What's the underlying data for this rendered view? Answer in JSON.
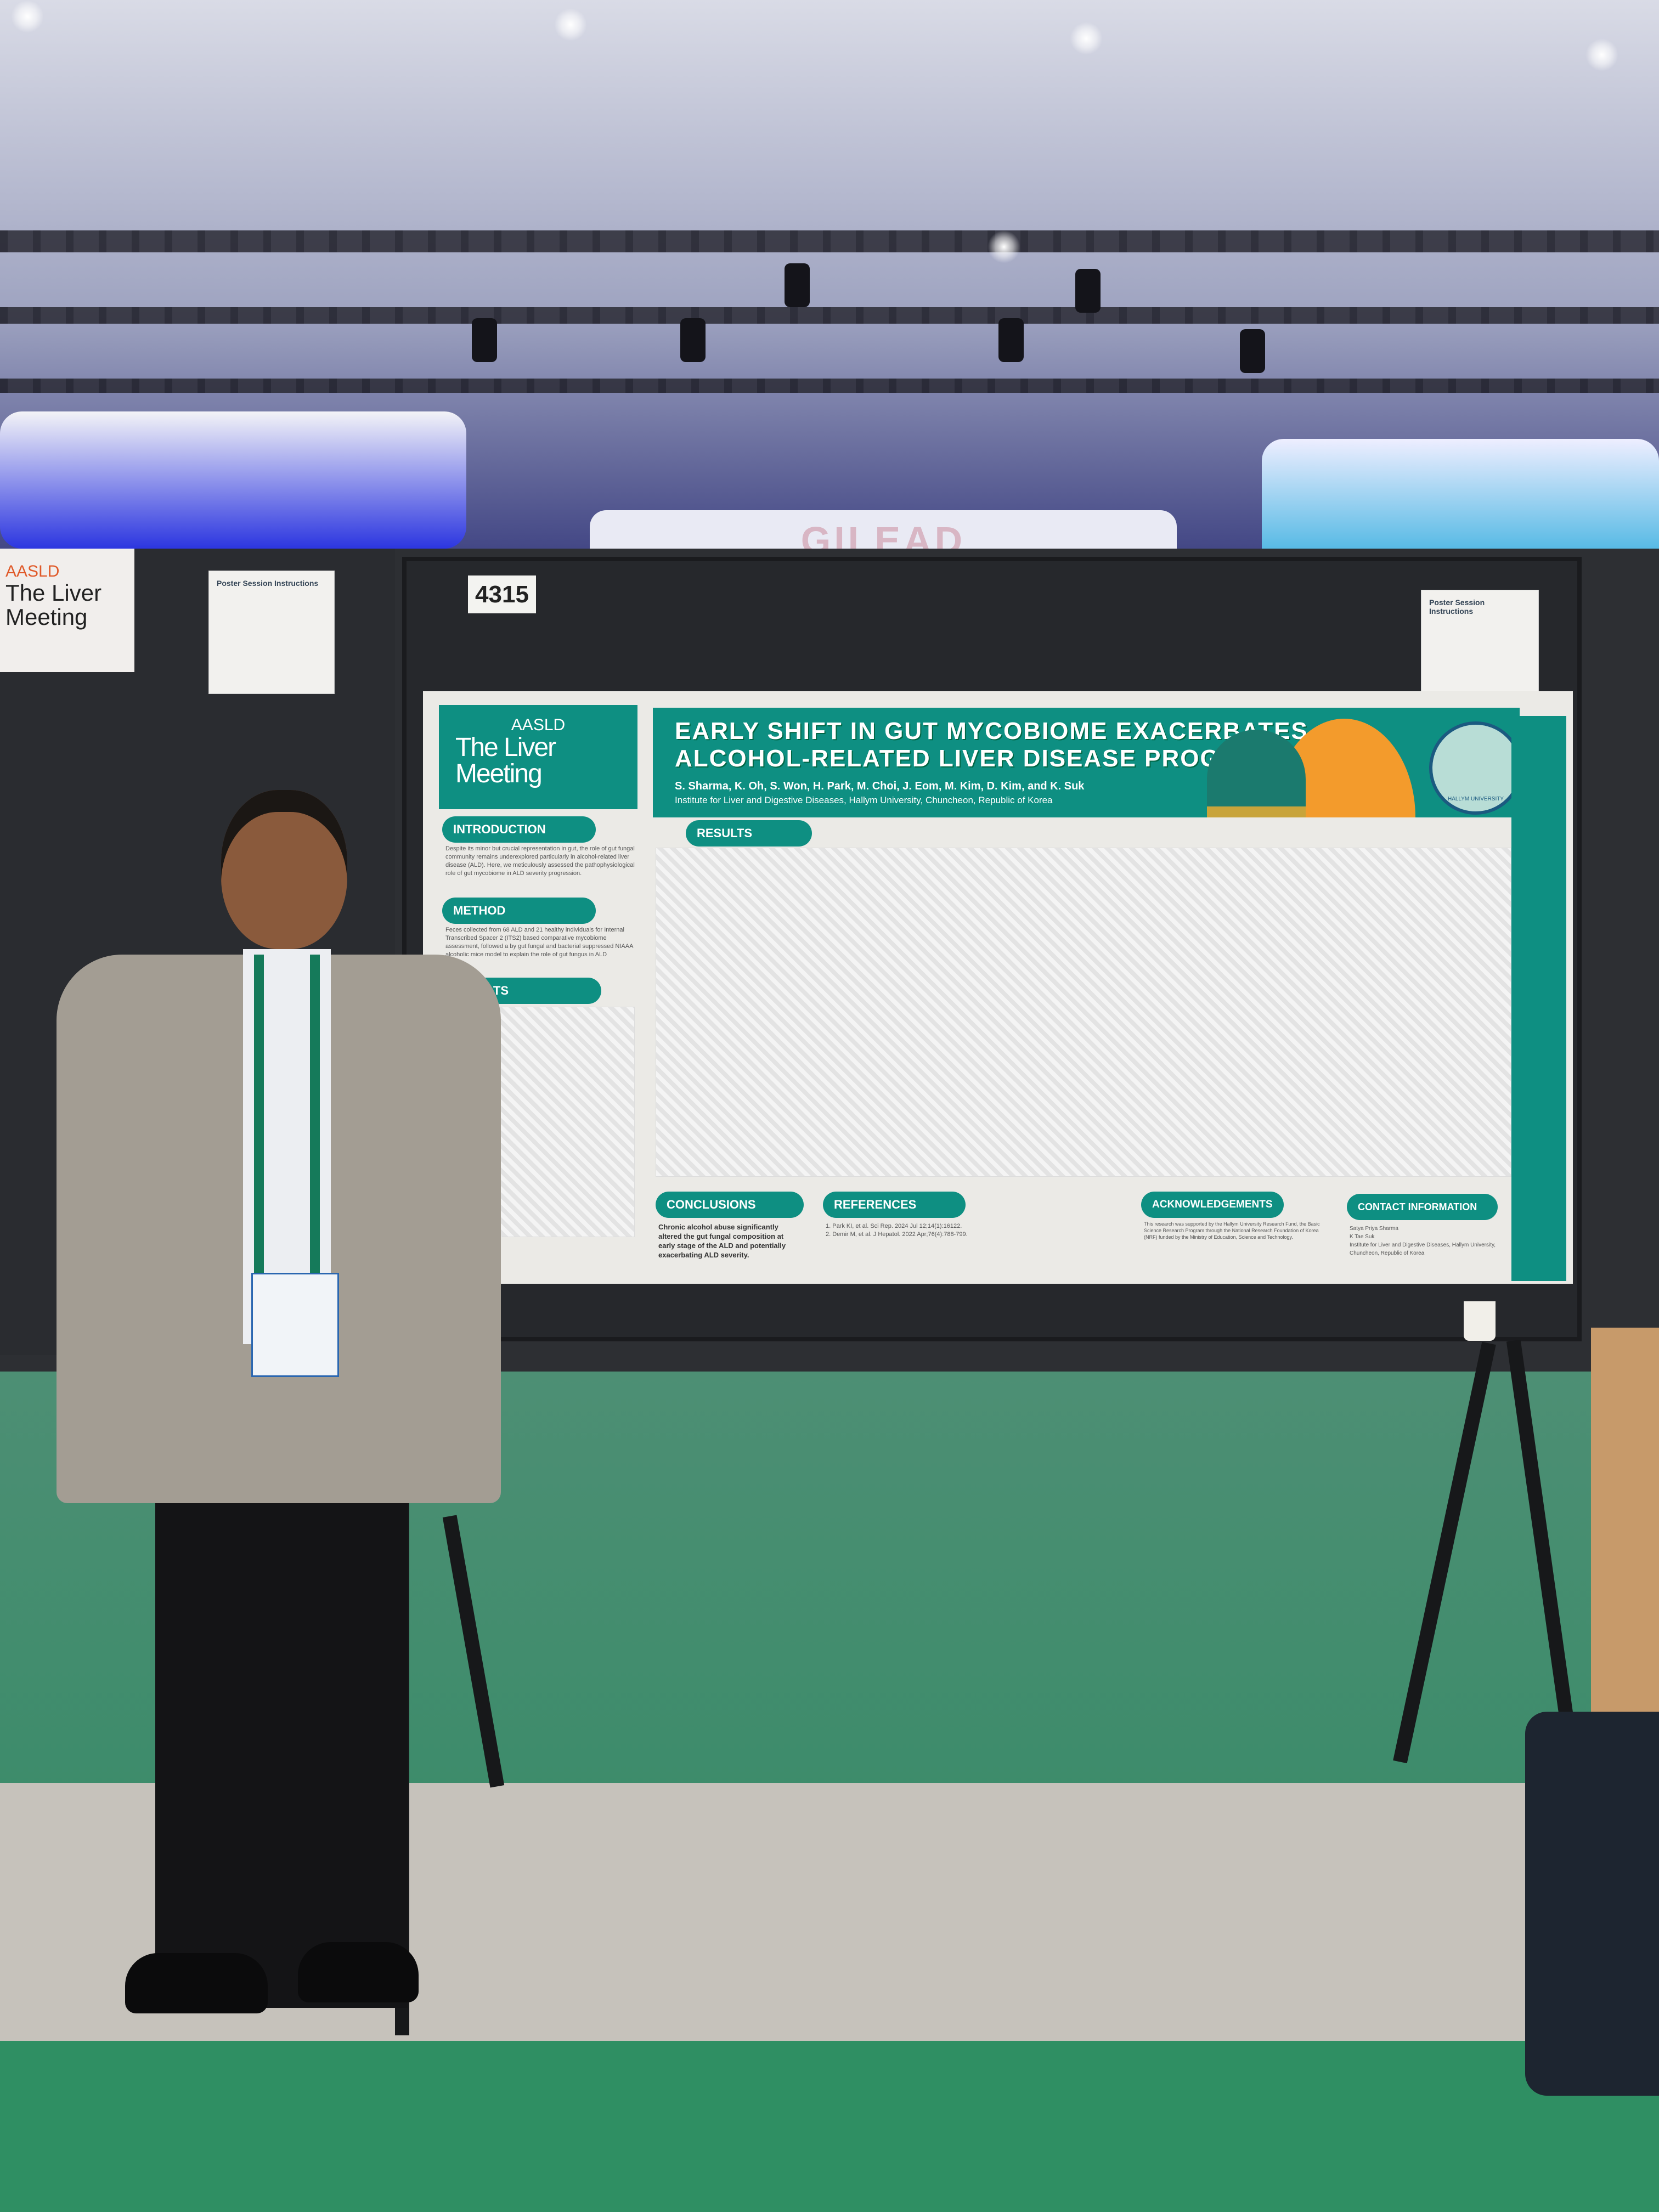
{
  "scene": {
    "booth_sign": "GILEAD",
    "poster_number": "4315",
    "side_sign": {
      "org": "AASLD",
      "name": "The Liver Meeting"
    },
    "notice_title": "Poster Session Instructions"
  },
  "poster": {
    "logo": {
      "org": "AASLD",
      "line1": "The Liver",
      "line2": "Meeting"
    },
    "title_line1": "EARLY SHIFT IN GUT MYCOBIOME EXACERBATES",
    "title_line2": "ALCOHOL-RELATED LIVER DISEASE PROGRESSION",
    "authors": "S. Sharma, K. Oh, S. Won, H. Park, M. Choi, J. Eom, M. Kim, D. Kim, and K. Suk",
    "affiliation": "Institute for Liver and Digestive Diseases, Hallym University, Chuncheon, Republic of Korea",
    "university": "HALLYM UNIVERSITY",
    "sections": {
      "introduction": {
        "heading": "INTRODUCTION",
        "text": "Despite its minor but crucial representation in gut, the role of gut fungal community remains underexplored particularly in alcohol-related liver disease (ALD). Here, we meticulously assessed the pathophysiological role of gut mycobiome in ALD severity progression."
      },
      "method": {
        "heading": "METHOD",
        "text": "Feces collected from 68 ALD and 21 healthy individuals for Internal Transcribed Spacer 2 (ITS2) based comparative mycobiome assessment, followed a by gut fungal and bacterial suppressed NIAAA alcoholic mice model to explain the role of gut fungus in ALD"
      },
      "results_left": {
        "heading": "RESULTS"
      },
      "results": {
        "heading": "RESULTS"
      },
      "conclusions": {
        "heading": "CONCLUSIONS",
        "text": "Chronic alcohol abuse significantly altered the gut fungal composition at early stage of the ALD and potentially exacerbating ALD severity."
      },
      "references": {
        "heading": "REFERENCES",
        "items": [
          "1. Park KI, et al. Sci Rep. 2024 Jul 12;14(1):16122.",
          "2. Demir M, et al. J Hepatol. 2022 Apr;76(4):788-799."
        ]
      },
      "acknowledgements": {
        "heading": "ACKNOWLEDGEMENTS",
        "text": "This research was supported by the Hallym University Research Fund, the Basic Science Research Program through the National Research Foundation of Korea (NRF) funded by the Ministry of Education, Science and Technology."
      },
      "contact": {
        "heading": "CONTACT INFORMATION",
        "line1": "Satya Priya Sharma",
        "line2": "K Tae Suk",
        "line3": "Institute for Liver and Digestive Diseases, Hallym University, Chuncheon, Republic of Korea"
      }
    }
  },
  "colors": {
    "poster_teal": "#0e8f82",
    "carpet": "#3d8c6b",
    "accent_orange": "#f39b2c"
  }
}
